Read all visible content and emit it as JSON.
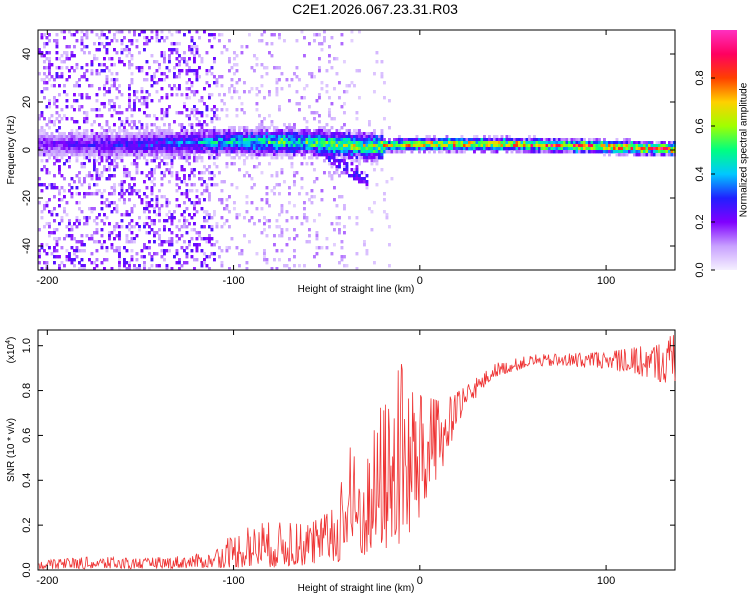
{
  "title": "C2E1.2026.067.23.31.R03",
  "colors": {
    "snr_line": "#ee3333",
    "colormap": [
      "#f5f0ff",
      "#c8a0ff",
      "#8000ff",
      "#2020ff",
      "#00c8ff",
      "#00ff80",
      "#a0ff00",
      "#ffd000",
      "#ff4000",
      "#ff0060",
      "#ff30c0"
    ]
  },
  "chart_data": [
    {
      "type": "heatmap",
      "name": "spectrogram",
      "xlabel": "Height of straight line (km)",
      "ylabel": "Frequency (Hz)",
      "xlim": [
        -205,
        137
      ],
      "ylim": [
        -50,
        50
      ],
      "xticks": [
        -200,
        -100,
        0,
        100
      ],
      "yticks": [
        -40,
        -20,
        0,
        20,
        40
      ],
      "tick_labels_x": [
        "-200",
        "-100",
        "0",
        "100"
      ],
      "tick_labels_y": [
        "-40",
        "-20",
        "0",
        "20",
        "40"
      ],
      "colorbar": {
        "label": "Normalized spectral amplitude",
        "range": [
          0.0,
          1.0
        ],
        "ticks": [
          0.0,
          0.2,
          0.4,
          0.6,
          0.8
        ],
        "tick_labels": [
          "0.0",
          "0.2",
          "0.4",
          "0.6",
          "0.8"
        ]
      },
      "band_center_hz": [
        {
          "x": -200,
          "f": 3
        },
        {
          "x": -150,
          "f": 3
        },
        {
          "x": -100,
          "f": 4
        },
        {
          "x": -60,
          "f": 4
        },
        {
          "x": -30,
          "f": 2
        },
        {
          "x": 0,
          "f": 3
        },
        {
          "x": 50,
          "f": 3
        },
        {
          "x": 100,
          "f": 2
        },
        {
          "x": 137,
          "f": 1
        }
      ],
      "peak_amplitude": [
        {
          "x": -200,
          "a": 0.25
        },
        {
          "x": -130,
          "a": 0.4
        },
        {
          "x": -100,
          "a": 0.55
        },
        {
          "x": -60,
          "a": 0.65
        },
        {
          "x": -30,
          "a": 0.75
        },
        {
          "x": -10,
          "a": 0.85
        },
        {
          "x": 10,
          "a": 0.9
        },
        {
          "x": 80,
          "a": 0.92
        },
        {
          "x": 120,
          "a": 0.98
        }
      ]
    },
    {
      "type": "line",
      "name": "snr",
      "xlabel": "Height of straight line (km)",
      "ylabel": "SNR (10 * v/v)",
      "ylabel_scale": "(x10",
      "ylabel_scale_exp": "4",
      "ylabel_scale_close": ")",
      "xlim": [
        -205,
        137
      ],
      "ylim": [
        0.0,
        1.07
      ],
      "xticks": [
        -200,
        -100,
        0,
        100
      ],
      "yticks": [
        0.0,
        0.2,
        0.4,
        0.6,
        0.8,
        1.0
      ],
      "tick_labels_x": [
        "-200",
        "-100",
        "0",
        "100"
      ],
      "tick_labels_y": [
        "0.0",
        "0.2",
        "0.4",
        "0.6",
        "0.8",
        "1.0"
      ],
      "envelope": [
        {
          "x": -205,
          "lo": 0.005,
          "hi": 0.04
        },
        {
          "x": -175,
          "lo": 0.005,
          "hi": 0.06
        },
        {
          "x": -150,
          "lo": 0.005,
          "hi": 0.05
        },
        {
          "x": -110,
          "lo": 0.01,
          "hi": 0.08
        },
        {
          "x": -100,
          "lo": 0.01,
          "hi": 0.17
        },
        {
          "x": -80,
          "lo": 0.01,
          "hi": 0.22
        },
        {
          "x": -60,
          "lo": 0.02,
          "hi": 0.2
        },
        {
          "x": -45,
          "lo": 0.03,
          "hi": 0.28
        },
        {
          "x": -38,
          "lo": 0.05,
          "hi": 0.55
        },
        {
          "x": -30,
          "lo": 0.05,
          "hi": 0.5
        },
        {
          "x": -20,
          "lo": 0.08,
          "hi": 0.75
        },
        {
          "x": -8,
          "lo": 0.1,
          "hi": 0.95
        },
        {
          "x": 0,
          "lo": 0.2,
          "hi": 0.78
        },
        {
          "x": 12,
          "lo": 0.45,
          "hi": 0.75
        },
        {
          "x": 25,
          "lo": 0.72,
          "hi": 0.82
        },
        {
          "x": 40,
          "lo": 0.86,
          "hi": 0.92
        },
        {
          "x": 60,
          "lo": 0.91,
          "hi": 0.96
        },
        {
          "x": 100,
          "lo": 0.9,
          "hi": 0.97
        },
        {
          "x": 120,
          "lo": 0.86,
          "hi": 1.0
        },
        {
          "x": 137,
          "lo": 0.82,
          "hi": 1.05
        }
      ]
    }
  ]
}
